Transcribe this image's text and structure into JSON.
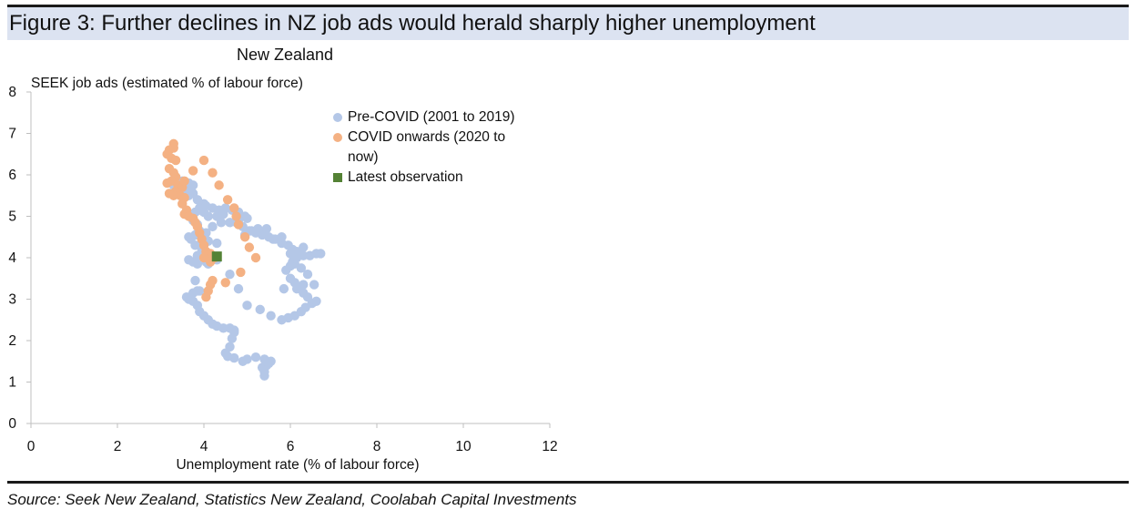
{
  "header": {
    "title": "Figure 3: Further declines in NZ job ads would herald sharply higher unemployment"
  },
  "footer": {
    "source": "Source: Seek New Zealand, Statistics New Zealand, Coolabah Capital Investments"
  },
  "legend": {
    "items": [
      {
        "label": "Pre-COVID (2001 to 2019)",
        "color": "#b4c7e7",
        "marker": "circle"
      },
      {
        "label": "COVID onwards (2020 to now)",
        "color": "#f4b183",
        "marker": "circle"
      },
      {
        "label": "Latest observation",
        "color": "#548235",
        "marker": "square"
      }
    ]
  },
  "chart_data": {
    "type": "scatter",
    "title": "New Zealand",
    "xlabel": "Unemployment rate (% of labour force)",
    "ylabel": "SEEK job ads (estimated % of labour force)",
    "xlim": [
      0,
      12
    ],
    "ylim": [
      0,
      8
    ],
    "xticks": [
      "0",
      "2",
      "4",
      "6",
      "8",
      "10",
      "12"
    ],
    "yticks": [
      "0",
      "1",
      "2",
      "3",
      "4",
      "5",
      "6",
      "7",
      "8"
    ],
    "grid": false,
    "legend_position": "right",
    "series": [
      {
        "name": "Pre-COVID (2001 to 2019)",
        "color": "#b4c7e7",
        "marker": "circle",
        "points": [
          [
            5.4,
            1.15
          ],
          [
            5.4,
            1.25
          ],
          [
            5.35,
            1.35
          ],
          [
            5.45,
            1.4
          ],
          [
            5.55,
            1.5
          ],
          [
            5.4,
            1.55
          ],
          [
            5.2,
            1.6
          ],
          [
            5.0,
            1.55
          ],
          [
            4.9,
            1.5
          ],
          [
            4.7,
            1.58
          ],
          [
            4.55,
            1.62
          ],
          [
            4.5,
            1.7
          ],
          [
            4.6,
            1.85
          ],
          [
            4.65,
            2.05
          ],
          [
            4.7,
            2.25
          ],
          [
            4.6,
            2.3
          ],
          [
            4.45,
            2.3
          ],
          [
            4.3,
            2.35
          ],
          [
            4.2,
            2.4
          ],
          [
            4.1,
            2.5
          ],
          [
            4.0,
            2.6
          ],
          [
            3.9,
            2.7
          ],
          [
            3.85,
            2.85
          ],
          [
            3.75,
            2.95
          ],
          [
            3.65,
            3.0
          ],
          [
            3.6,
            3.05
          ],
          [
            3.75,
            3.15
          ],
          [
            3.85,
            3.2
          ],
          [
            3.8,
            3.45
          ],
          [
            3.85,
            3.85
          ],
          [
            3.75,
            3.9
          ],
          [
            3.65,
            3.95
          ],
          [
            3.85,
            4.05
          ],
          [
            3.95,
            4.15
          ],
          [
            3.8,
            4.3
          ],
          [
            3.7,
            4.45
          ],
          [
            3.65,
            4.5
          ],
          [
            3.8,
            4.55
          ],
          [
            3.9,
            4.65
          ],
          [
            3.85,
            4.8
          ],
          [
            3.75,
            4.9
          ],
          [
            3.7,
            5.0
          ],
          [
            3.8,
            5.1
          ],
          [
            3.9,
            5.2
          ],
          [
            4.0,
            5.3
          ],
          [
            3.85,
            5.4
          ],
          [
            3.75,
            5.55
          ],
          [
            3.7,
            5.65
          ],
          [
            3.75,
            5.75
          ],
          [
            3.65,
            5.8
          ],
          [
            3.5,
            5.85
          ],
          [
            3.4,
            5.8
          ],
          [
            3.3,
            5.75
          ],
          [
            3.5,
            5.7
          ],
          [
            3.7,
            5.6
          ],
          [
            3.9,
            5.15
          ],
          [
            4.05,
            5.25
          ],
          [
            4.2,
            5.2
          ],
          [
            4.35,
            5.15
          ],
          [
            4.5,
            5.2
          ],
          [
            4.65,
            5.15
          ],
          [
            4.8,
            5.1
          ],
          [
            4.95,
            5.0
          ],
          [
            4.8,
            4.9
          ],
          [
            4.6,
            4.85
          ],
          [
            4.4,
            4.85
          ],
          [
            4.2,
            4.75
          ],
          [
            4.05,
            4.6
          ],
          [
            3.95,
            4.5
          ],
          [
            4.1,
            4.4
          ],
          [
            4.3,
            4.35
          ],
          [
            4.15,
            4.0
          ],
          [
            4.05,
            3.9
          ],
          [
            4.1,
            3.85
          ],
          [
            4.3,
            3.95
          ],
          [
            4.6,
            3.6
          ],
          [
            4.8,
            3.25
          ],
          [
            5.0,
            2.85
          ],
          [
            5.3,
            2.75
          ],
          [
            5.55,
            2.6
          ],
          [
            5.8,
            2.5
          ],
          [
            5.95,
            2.55
          ],
          [
            6.1,
            2.6
          ],
          [
            6.25,
            2.7
          ],
          [
            6.35,
            2.8
          ],
          [
            6.5,
            2.9
          ],
          [
            6.6,
            2.95
          ],
          [
            6.4,
            3.05
          ],
          [
            6.3,
            3.15
          ],
          [
            6.15,
            3.25
          ],
          [
            6.1,
            3.4
          ],
          [
            6.3,
            3.35
          ],
          [
            6.55,
            3.35
          ],
          [
            6.4,
            3.6
          ],
          [
            6.25,
            3.75
          ],
          [
            6.1,
            3.85
          ],
          [
            6.05,
            3.9
          ],
          [
            6.15,
            4.0
          ],
          [
            6.3,
            4.05
          ],
          [
            6.45,
            4.05
          ],
          [
            6.6,
            4.1
          ],
          [
            6.7,
            4.1
          ],
          [
            6.3,
            4.25
          ],
          [
            6.15,
            4.15
          ],
          [
            6.05,
            4.2
          ],
          [
            5.95,
            4.3
          ],
          [
            5.8,
            4.35
          ],
          [
            5.65,
            4.45
          ],
          [
            5.5,
            4.5
          ],
          [
            5.35,
            4.55
          ],
          [
            5.2,
            4.6
          ],
          [
            5.1,
            4.65
          ],
          [
            5.25,
            4.7
          ],
          [
            5.45,
            4.7
          ],
          [
            5.6,
            4.45
          ],
          [
            5.8,
            4.5
          ],
          [
            6.0,
            4.1
          ],
          [
            6.0,
            3.8
          ],
          [
            5.9,
            3.7
          ],
          [
            6.0,
            3.5
          ],
          [
            5.85,
            3.25
          ],
          [
            4.95,
            4.55
          ],
          [
            5.05,
            4.65
          ],
          [
            4.9,
            4.75
          ],
          [
            4.75,
            4.85
          ],
          [
            5.0,
            4.95
          ],
          [
            4.3,
            5.0
          ],
          [
            4.45,
            5.05
          ],
          [
            4.1,
            5.0
          ],
          [
            4.0,
            5.1
          ],
          [
            3.65,
            5.5
          ],
          [
            3.55,
            5.6
          ],
          [
            3.9,
            3.2
          ],
          [
            4.7,
            2.2
          ],
          [
            5.5,
            1.45
          ]
        ]
      },
      {
        "name": "COVID onwards (2020 to now)",
        "color": "#f4b183",
        "marker": "circle",
        "points": [
          [
            3.3,
            6.75
          ],
          [
            3.3,
            6.65
          ],
          [
            3.2,
            6.6
          ],
          [
            3.15,
            6.5
          ],
          [
            3.25,
            6.4
          ],
          [
            3.35,
            6.35
          ],
          [
            3.2,
            6.15
          ],
          [
            3.3,
            6.05
          ],
          [
            3.35,
            5.95
          ],
          [
            3.25,
            5.85
          ],
          [
            3.15,
            5.8
          ],
          [
            3.4,
            5.75
          ],
          [
            3.5,
            5.7
          ],
          [
            3.35,
            5.6
          ],
          [
            3.45,
            5.5
          ],
          [
            3.3,
            5.5
          ],
          [
            3.2,
            5.55
          ],
          [
            3.55,
            5.45
          ],
          [
            3.5,
            5.3
          ],
          [
            3.6,
            5.15
          ],
          [
            3.55,
            5.05
          ],
          [
            3.65,
            5.0
          ],
          [
            3.75,
            4.95
          ],
          [
            3.8,
            4.85
          ],
          [
            3.85,
            4.75
          ],
          [
            3.9,
            4.6
          ],
          [
            3.95,
            4.45
          ],
          [
            4.0,
            4.3
          ],
          [
            4.05,
            4.15
          ],
          [
            4.15,
            4.1
          ],
          [
            4.0,
            4.0
          ],
          [
            4.15,
            3.9
          ],
          [
            4.2,
            3.45
          ],
          [
            4.15,
            3.35
          ],
          [
            4.1,
            3.2
          ],
          [
            4.05,
            3.05
          ],
          [
            4.5,
            3.4
          ],
          [
            4.85,
            3.65
          ],
          [
            5.2,
            4.0
          ],
          [
            5.05,
            4.25
          ],
          [
            4.95,
            4.5
          ],
          [
            4.8,
            4.8
          ],
          [
            4.75,
            5.0
          ],
          [
            4.7,
            5.2
          ],
          [
            4.55,
            5.4
          ],
          [
            4.35,
            5.75
          ],
          [
            4.2,
            6.05
          ],
          [
            4.0,
            6.35
          ],
          [
            3.75,
            6.1
          ],
          [
            3.55,
            5.85
          ],
          [
            4.25,
            4.0
          ]
        ]
      },
      {
        "name": "Latest observation",
        "color": "#548235",
        "marker": "square",
        "points": [
          [
            4.3,
            4.03
          ]
        ]
      }
    ]
  }
}
